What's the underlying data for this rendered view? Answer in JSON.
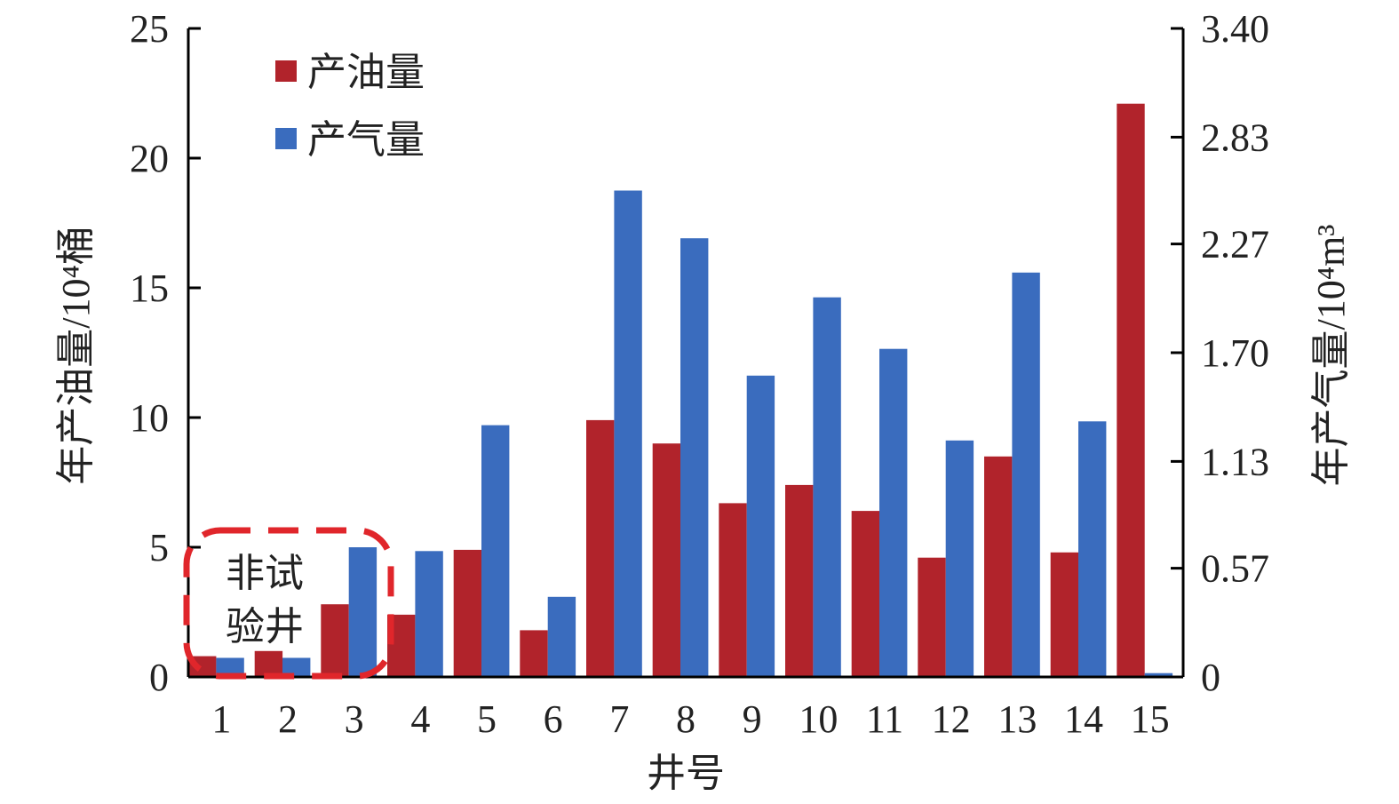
{
  "chart_data": {
    "type": "bar",
    "categories": [
      "1",
      "2",
      "3",
      "4",
      "5",
      "6",
      "7",
      "8",
      "9",
      "10",
      "11",
      "12",
      "13",
      "14",
      "15"
    ],
    "series": [
      {
        "name": "产油量",
        "axis": "left",
        "color": "#b1232b",
        "values": [
          0.8,
          1.0,
          2.8,
          2.4,
          4.9,
          1.8,
          9.9,
          9.0,
          6.7,
          7.4,
          6.4,
          4.6,
          8.5,
          4.8,
          22.1
        ]
      },
      {
        "name": "产气量",
        "axis": "right",
        "color": "#3a6cbe",
        "values": [
          0.1,
          0.1,
          0.68,
          0.66,
          1.32,
          0.42,
          2.55,
          2.3,
          1.58,
          1.99,
          1.72,
          1.24,
          2.12,
          1.34,
          0.02
        ]
      }
    ],
    "xlabel": "井号",
    "ylabel_left": "年产油量/10⁴桶",
    "ylabel_right": "年产气量/10⁴m³",
    "ylim_left": [
      0,
      25
    ],
    "ylim_right": [
      0,
      3.4
    ],
    "yticks_left": [
      0,
      5,
      10,
      15,
      20,
      25
    ],
    "yticks_right": [
      0,
      0.57,
      1.13,
      1.7,
      2.27,
      2.83,
      3.4
    ],
    "yticklabels_left": [
      "0",
      "5",
      "10",
      "15",
      "20",
      "25"
    ],
    "yticklabels_right": [
      "0",
      "0.57",
      "1.13",
      "1.70",
      "2.27",
      "2.83",
      "3.40"
    ],
    "legend_position": "top-left",
    "grid": false,
    "annotation": {
      "lines": [
        "非试",
        "验井"
      ],
      "style": "dashed-rounded-box",
      "color": "#e0262b",
      "covers_categories": [
        "1",
        "2",
        "3"
      ]
    }
  }
}
